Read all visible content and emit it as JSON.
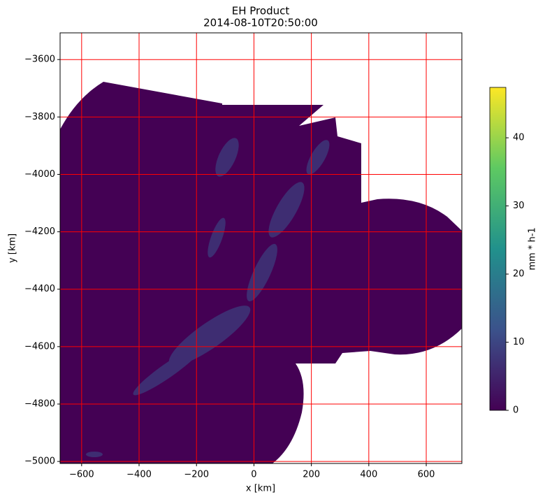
{
  "chart_data": {
    "type": "heatmap",
    "title": "EH Product",
    "subtitle": "2014-08-10T20:50:00",
    "xlabel": "x [km]",
    "ylabel": "y [km]",
    "xlim": [
      -675,
      724
    ],
    "ylim": [
      -5007,
      -3507
    ],
    "xticks": [
      {
        "value": -600,
        "label": "−600"
      },
      {
        "value": -400,
        "label": "−400"
      },
      {
        "value": -200,
        "label": "−200"
      },
      0,
      200,
      400,
      600
    ],
    "yticks": [
      {
        "value": -3600,
        "label": "−3600"
      },
      {
        "value": -3800,
        "label": "−3800"
      },
      {
        "value": -4000,
        "label": "−4000"
      },
      {
        "value": -4200,
        "label": "−4200"
      },
      {
        "value": -4400,
        "label": "−4400"
      },
      {
        "value": -4600,
        "label": "−4600"
      },
      {
        "value": -4800,
        "label": "−4800"
      },
      {
        "value": -5000,
        "label": "−5000"
      }
    ],
    "grid": true,
    "grid_color": "#ff0000",
    "colorbar": {
      "label": "mm * h-1",
      "lim": [
        0,
        47.4
      ],
      "ticks": [
        0,
        10,
        20,
        30,
        40
      ],
      "colormap": [
        "#440154",
        "#3b528b",
        "#21918c",
        "#5ec962",
        "#fde725"
      ]
    }
  }
}
